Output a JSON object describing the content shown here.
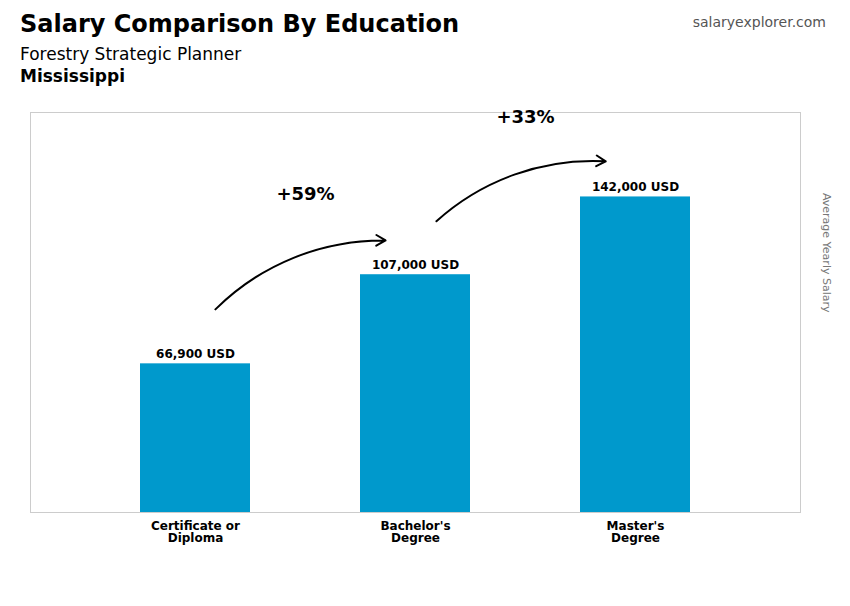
{
  "chart_data": {
    "type": "bar",
    "title": "Salary Comparison By Education",
    "subtitle": [
      "Forestry Strategic Planner",
      "Mississippi"
    ],
    "caption": "salaryexplorer.com",
    "ylabel": "Average Yearly Salary",
    "categories": [
      "Certificate or\nDiploma",
      "Bachelor's\nDegree",
      "Master's\nDegree"
    ],
    "values": [
      66900,
      107000,
      142000
    ],
    "value_labels": [
      "66,900 USD",
      "107,000 USD",
      "142,000 USD"
    ],
    "data_labels": true,
    "annotations": [
      "+59%",
      "+33%"
    ],
    "color": "#0099cc",
    "ylim": [
      0,
      180000
    ],
    "grid": false,
    "tick_labels": "x"
  }
}
